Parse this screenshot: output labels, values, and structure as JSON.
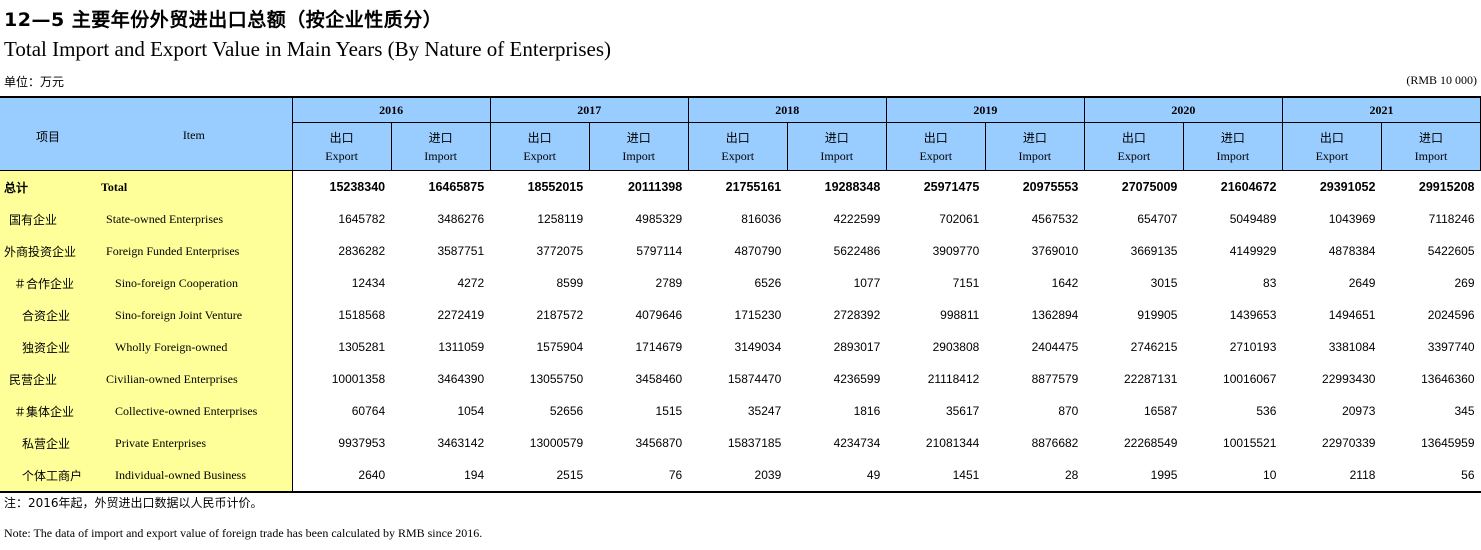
{
  "title_cn": "12—5  主要年份外贸进出口总额（按企业性质分）",
  "title_en": "Total Import and Export Value in Main Years (By Nature of Enterprises)",
  "unit_cn": "单位：万元",
  "unit_en": "(RMB 10 000)",
  "header": {
    "item_cn": "项目",
    "item_en": "Item",
    "years": [
      "2016",
      "2017",
      "2018",
      "2019",
      "2020",
      "2021"
    ],
    "export_cn": "出口",
    "export_en": "Export",
    "import_cn": "进口",
    "import_en": "Import"
  },
  "rows": [
    {
      "cn": "总计",
      "en": "Total",
      "values": [
        "15238340",
        "16465875",
        "18552015",
        "20111398",
        "21755161",
        "19288348",
        "25971475",
        "20975553",
        "27075009",
        "21604672",
        "29391052",
        "29915208"
      ]
    },
    {
      "cn": "国有企业",
      "en": "State-owned Enterprises",
      "values": [
        "1645782",
        "3486276",
        "1258119",
        "4985329",
        "816036",
        "4222599",
        "702061",
        "4567532",
        "654707",
        "5049489",
        "1043969",
        "7118246"
      ]
    },
    {
      "cn": "外商投资企业",
      "en": "Foreign Funded Enterprises",
      "values": [
        "2836282",
        "3587751",
        "3772075",
        "5797114",
        "4870790",
        "5622486",
        "3909770",
        "3769010",
        "3669135",
        "4149929",
        "4878384",
        "5422605"
      ]
    },
    {
      "cn": "＃合作企业",
      "en": "Sino-foreign Cooperation",
      "values": [
        "12434",
        "4272",
        "8599",
        "2789",
        "6526",
        "1077",
        "7151",
        "1642",
        "3015",
        "83",
        "2649",
        "269"
      ]
    },
    {
      "cn": "合资企业",
      "en": "Sino-foreign Joint Venture",
      "values": [
        "1518568",
        "2272419",
        "2187572",
        "4079646",
        "1715230",
        "2728392",
        "998811",
        "1362894",
        "919905",
        "1439653",
        "1494651",
        "2024596"
      ]
    },
    {
      "cn": "独资企业",
      "en": "Wholly Foreign-owned",
      "values": [
        "1305281",
        "1311059",
        "1575904",
        "1714679",
        "3149034",
        "2893017",
        "2903808",
        "2404475",
        "2746215",
        "2710193",
        "3381084",
        "3397740"
      ]
    },
    {
      "cn": "民营企业",
      "en": "Civilian-owned Enterprises",
      "values": [
        "10001358",
        "3464390",
        "13055750",
        "3458460",
        "15874470",
        "4236599",
        "21118412",
        "8877579",
        "22287131",
        "10016067",
        "22993430",
        "13646360"
      ]
    },
    {
      "cn": "＃集体企业",
      "en": "Collective-owned Enterprises",
      "values": [
        "60764",
        "1054",
        "52656",
        "1515",
        "35247",
        "1816",
        "35617",
        "870",
        "16587",
        "536",
        "20973",
        "345"
      ]
    },
    {
      "cn": "私营企业",
      "en": "Private Enterprises",
      "values": [
        "9937953",
        "3463142",
        "13000579",
        "3456870",
        "15837185",
        "4234734",
        "21081344",
        "8876682",
        "22268549",
        "10015521",
        "22970339",
        "13645959"
      ]
    },
    {
      "cn": "个体工商户",
      "en": "Individual-owned Business",
      "values": [
        "2640",
        "194",
        "2515",
        "76",
        "2039",
        "49",
        "1451",
        "28",
        "1995",
        "10",
        "2118",
        "56"
      ]
    }
  ],
  "note_cn": "注：2016年起，外贸进出口数据以人民币计价。",
  "note_en": "Note: The data of import and export value of foreign trade has been calculated by RMB since 2016."
}
